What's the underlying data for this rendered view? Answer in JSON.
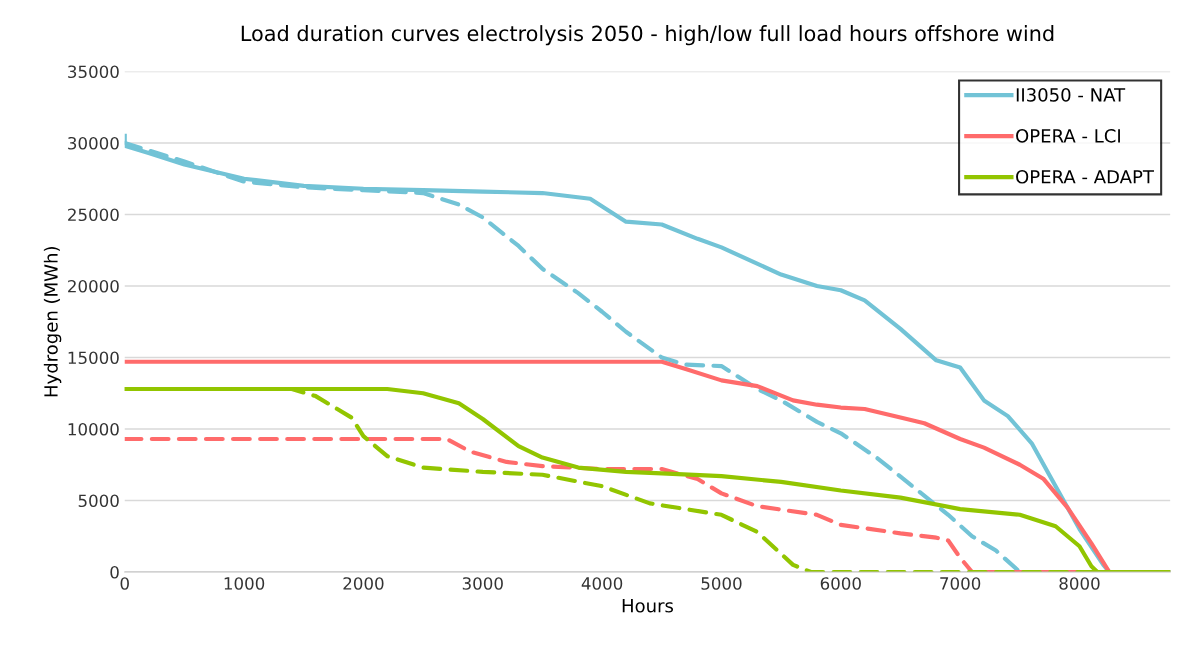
{
  "chart_data": {
    "type": "line",
    "title": "Load duration curves electrolysis 2050 - high/low full load hours offshore wind",
    "xlabel": "Hours",
    "ylabel": "Hydrogen (MWh)",
    "xlim": [
      0,
      8760
    ],
    "xticks": [
      0,
      1000,
      2000,
      3000,
      4000,
      5000,
      6000,
      7000,
      8000
    ],
    "ylim": [
      0,
      35000
    ],
    "yticks": [
      0,
      5000,
      10000,
      15000,
      20000,
      25000,
      30000,
      35000
    ],
    "grid": "y",
    "legend": "top right",
    "marker": "none",
    "series": [
      {
        "name": "II3050 - NAT",
        "color": "#72c3d6",
        "line_style": "solid",
        "x": [
          0,
          0,
          200,
          500,
          1000,
          1500,
          2000,
          2500,
          3000,
          3500,
          3900,
          4200,
          4500,
          4800,
          5000,
          5500,
          5800,
          6000,
          6200,
          6500,
          6800,
          7000,
          7200,
          7400,
          7600,
          7800,
          8000,
          8200,
          8250,
          8760
        ],
        "values": [
          30500,
          29800,
          29300,
          28500,
          27500,
          27000,
          26800,
          26700,
          26600,
          26500,
          26100,
          24500,
          24300,
          23300,
          22700,
          20800,
          20000,
          19700,
          19000,
          17000,
          14800,
          14300,
          12000,
          10900,
          9000,
          6000,
          3000,
          500,
          0,
          0
        ]
      },
      {
        "color": "#72c3d6",
        "line_style": "dashed",
        "x": [
          0,
          500,
          1000,
          1500,
          2000,
          2500,
          2800,
          3000,
          3300,
          3500,
          3800,
          4000,
          4200,
          4500,
          4700,
          5000,
          5300,
          5500,
          5800,
          6000,
          6300,
          6600,
          6900,
          7100,
          7300,
          7500,
          8760
        ],
        "values": [
          30000,
          28700,
          27300,
          26900,
          26700,
          26500,
          25700,
          24800,
          22800,
          21200,
          19500,
          18200,
          16800,
          15000,
          14500,
          14400,
          12800,
          12000,
          10500,
          9700,
          8000,
          6000,
          4000,
          2500,
          1500,
          0,
          0
        ]
      },
      {
        "name": "OPERA - LCI",
        "color": "#ff6b6b",
        "line_style": "solid",
        "x": [
          0,
          4500,
          4700,
          5000,
          5300,
          5600,
          5800,
          6000,
          6200,
          6500,
          6700,
          7000,
          7200,
          7500,
          7700,
          7900,
          8100,
          8250,
          8760
        ],
        "values": [
          14700,
          14700,
          14200,
          13400,
          13000,
          12000,
          11700,
          11500,
          11400,
          10800,
          10400,
          9300,
          8700,
          7500,
          6500,
          4500,
          2000,
          0,
          0
        ]
      },
      {
        "color": "#ff6b6b",
        "line_style": "dashed",
        "x": [
          0,
          2700,
          2900,
          3200,
          3500,
          4000,
          4500,
          4800,
          5000,
          5300,
          5800,
          6000,
          6500,
          6800,
          6900,
          7000,
          7100,
          8760
        ],
        "values": [
          9300,
          9300,
          8400,
          7700,
          7400,
          7200,
          7200,
          6500,
          5500,
          4600,
          4000,
          3300,
          2700,
          2400,
          2200,
          1000,
          0,
          0
        ]
      },
      {
        "name": "OPERA - ADAPT",
        "color": "#92c500",
        "line_style": "solid",
        "x": [
          0,
          2200,
          2500,
          2800,
          3000,
          3300,
          3500,
          3800,
          4200,
          4500,
          5000,
          5500,
          6000,
          6500,
          7000,
          7500,
          7800,
          8000,
          8100,
          8150,
          8760
        ],
        "values": [
          12800,
          12800,
          12500,
          11800,
          10700,
          8800,
          8000,
          7300,
          7000,
          6900,
          6700,
          6300,
          5700,
          5200,
          4400,
          4000,
          3200,
          1800,
          400,
          0,
          0
        ]
      },
      {
        "color": "#92c500",
        "line_style": "dashed",
        "x": [
          0,
          1400,
          1600,
          1900,
          2000,
          2200,
          2500,
          3000,
          3500,
          4000,
          4400,
          5000,
          5300,
          5600,
          5750,
          8760
        ],
        "values": [
          12800,
          12800,
          12300,
          10800,
          9500,
          8100,
          7300,
          7000,
          6800,
          6000,
          4800,
          4000,
          2800,
          500,
          0,
          0
        ]
      }
    ]
  }
}
